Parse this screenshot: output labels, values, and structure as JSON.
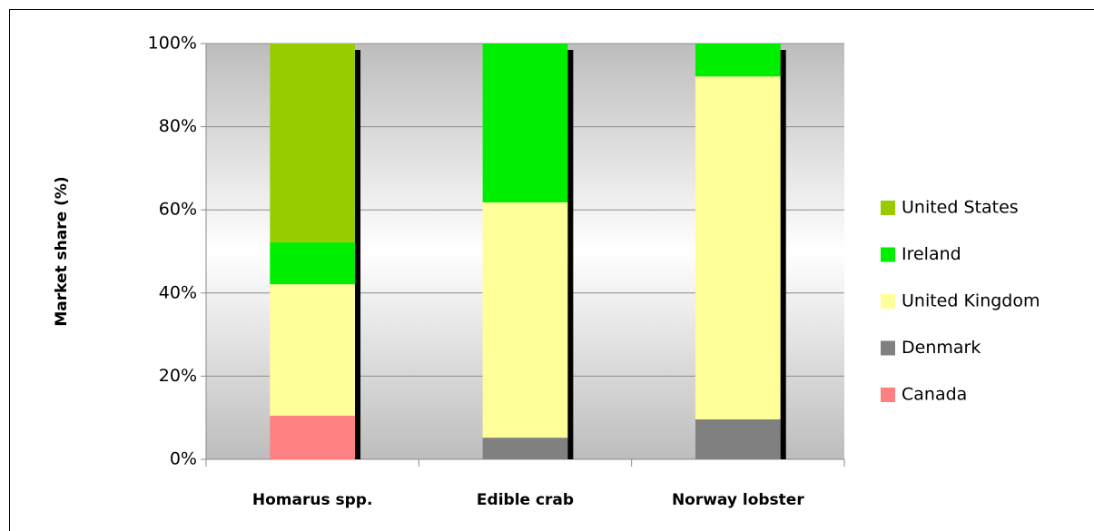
{
  "chart_data": {
    "type": "bar",
    "stacked": true,
    "ylabel": "Market share (%)",
    "categories": [
      "Homarus spp.",
      "Edible crab",
      "Norway lobster"
    ],
    "series": [
      {
        "name": "Canada",
        "color": "#ff8080",
        "values": [
          10.5,
          0,
          0
        ]
      },
      {
        "name": "Denmark",
        "color": "#808080",
        "values": [
          0,
          5.2,
          9.6
        ]
      },
      {
        "name": "United Kingdom",
        "color": "#ffff99",
        "values": [
          31.6,
          56.6,
          82.5
        ]
      },
      {
        "name": "Ireland",
        "color": "#00ee00",
        "values": [
          10.1,
          38.2,
          7.9
        ]
      },
      {
        "name": "United States",
        "color": "#99cc00",
        "values": [
          47.8,
          0,
          0
        ]
      }
    ],
    "ylim": [
      0,
      100
    ],
    "yticks": [
      {
        "value": 0,
        "label": "0%"
      },
      {
        "value": 20,
        "label": "20%"
      },
      {
        "value": 40,
        "label": "40%"
      },
      {
        "value": 60,
        "label": "60%"
      },
      {
        "value": 80,
        "label": "80%"
      },
      {
        "value": 100,
        "label": "100%"
      }
    ],
    "grid": true,
    "legend": "right"
  }
}
